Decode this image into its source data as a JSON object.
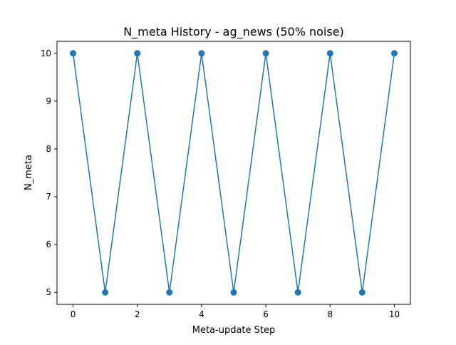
{
  "chart_data": {
    "type": "line",
    "title": "N_meta History - ag_news (50% noise)",
    "xlabel": "Meta-update Step",
    "ylabel": "N_meta",
    "x": [
      0,
      1,
      2,
      3,
      4,
      5,
      6,
      7,
      8,
      9,
      10
    ],
    "series": [
      {
        "values": [
          10,
          5,
          10,
          5,
          10,
          5,
          10,
          5,
          10,
          5,
          10
        ],
        "color": "#1f77b4",
        "marker": "circle"
      }
    ],
    "xlim": [
      -0.5,
      10.5
    ],
    "ylim": [
      4.75,
      10.25
    ],
    "xticks": [
      0,
      2,
      4,
      6,
      8,
      10
    ],
    "yticks": [
      5,
      6,
      7,
      8,
      9,
      10
    ],
    "grid": false,
    "legend": "none"
  }
}
